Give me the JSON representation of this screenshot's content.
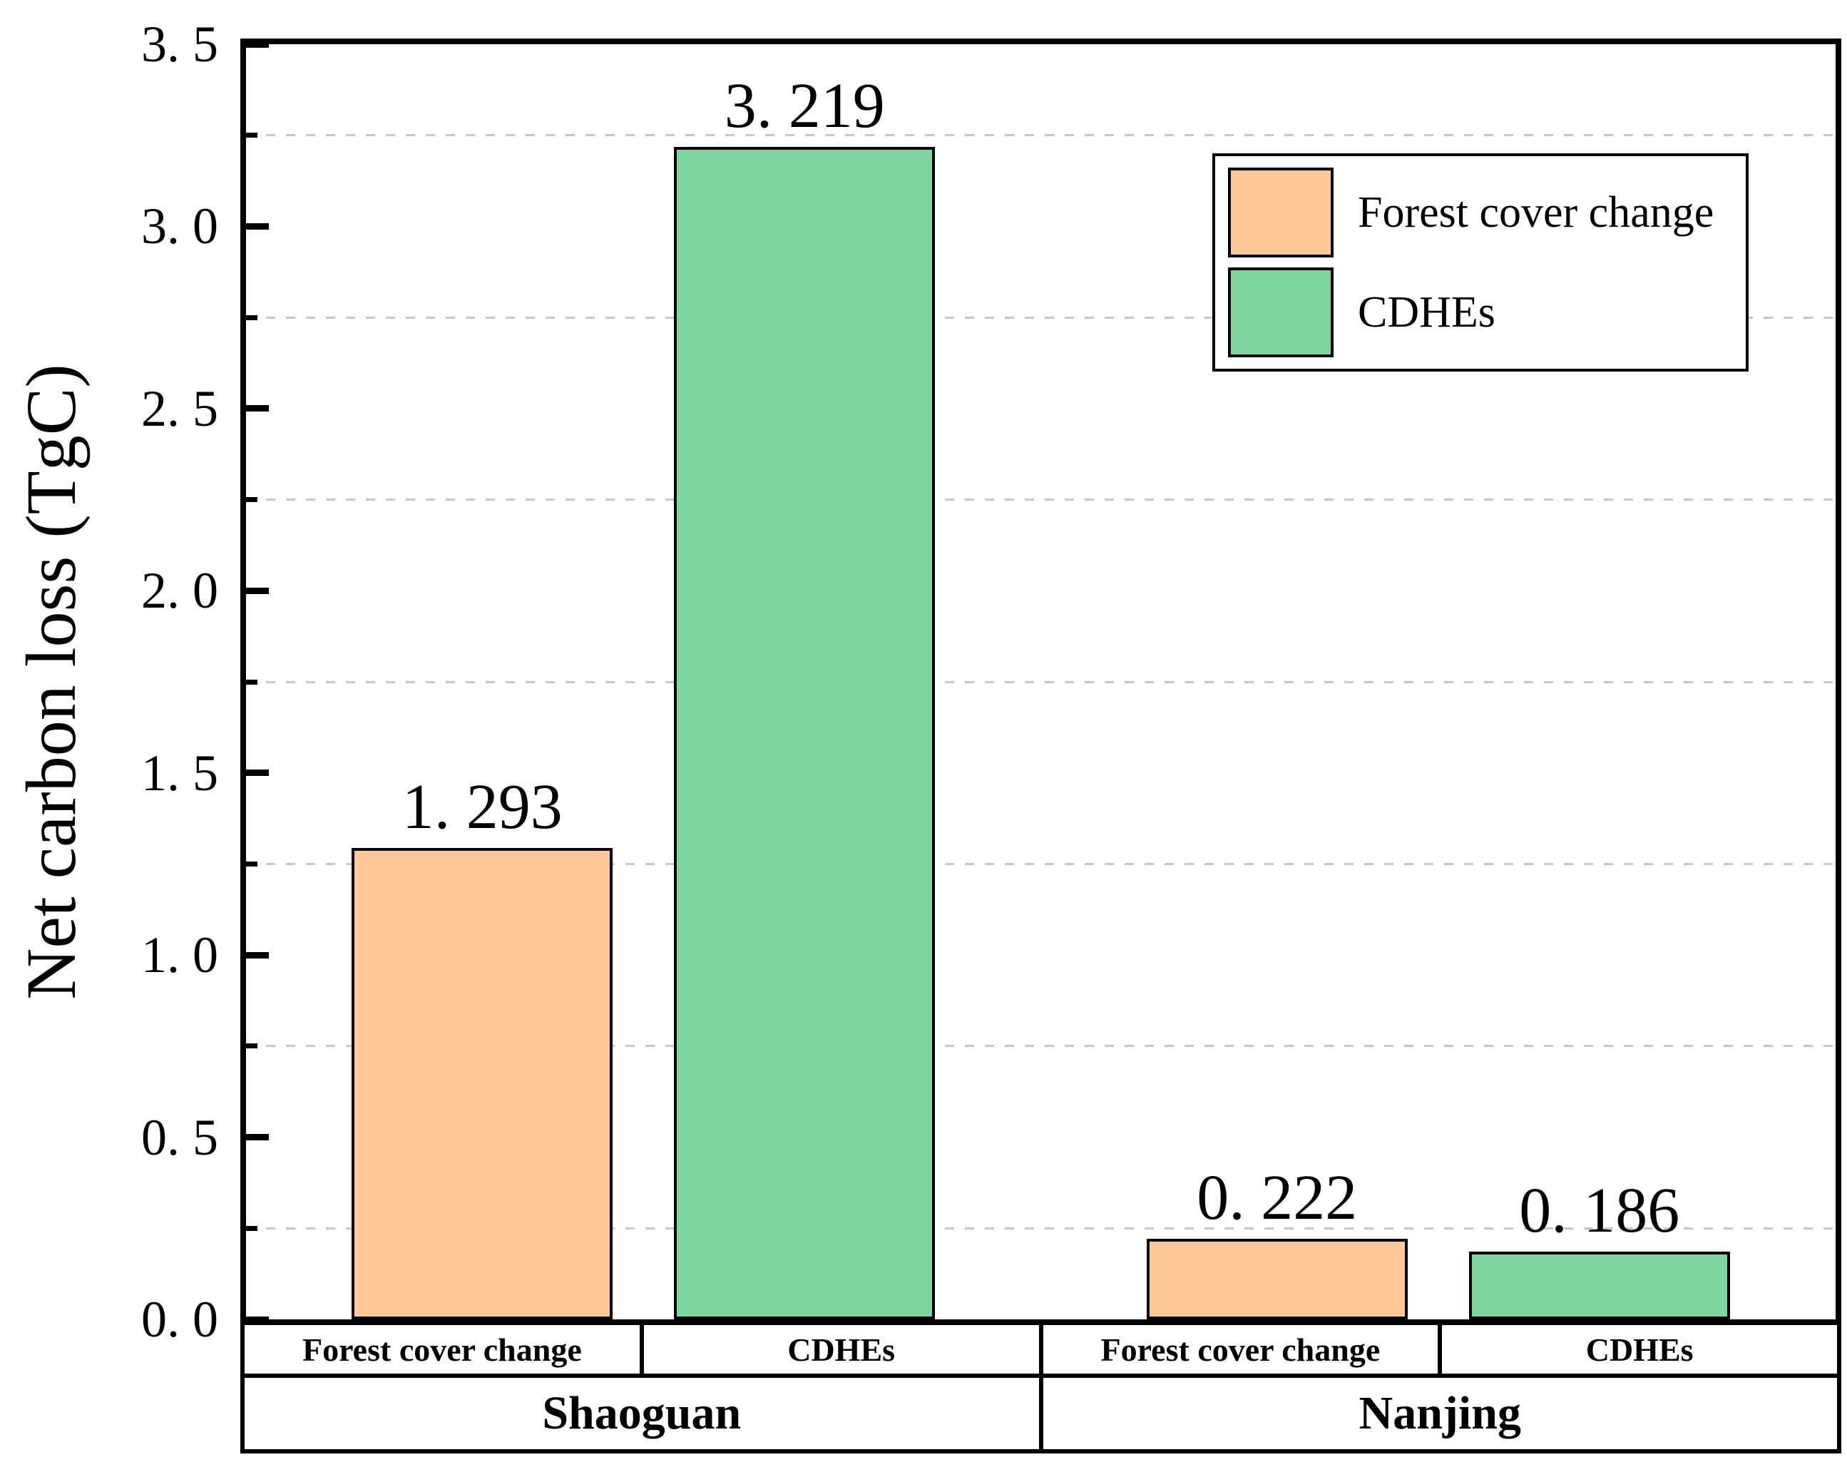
{
  "chart_data": {
    "type": "bar",
    "title": "",
    "ylabel": "Net carbon loss (TgC)",
    "xlabel": "",
    "ylim": [
      0,
      3.5
    ],
    "ymajor_step": 0.5,
    "yminor_step": 0.25,
    "grid": {
      "style": "dashed",
      "color": "#c8c8c8",
      "positions": "minor-ticks-only",
      "orientation": "horizontal"
    },
    "ytick_labels": [
      "0. 0",
      "0. 5",
      "1. 0",
      "1. 5",
      "2. 0",
      "2. 5",
      "3. 0",
      "3. 5"
    ],
    "tick_direction": "in",
    "legend": {
      "position": "upper-right",
      "entries": [
        {
          "label": "Forest cover change",
          "color": "#FEC897"
        },
        {
          "label": "CDHEs",
          "color": "#7CD69D"
        }
      ]
    },
    "groups": [
      {
        "name": "Shaoguan",
        "bars": [
          {
            "series": "Forest cover change",
            "value": 1.293,
            "label": "1. 293"
          },
          {
            "series": "CDHEs",
            "value": 3.219,
            "label": "3. 219"
          }
        ]
      },
      {
        "name": "Nanjing",
        "bars": [
          {
            "series": "Forest cover change",
            "value": 0.222,
            "label": "0. 222"
          },
          {
            "series": "CDHEs",
            "value": 0.186,
            "label": "0. 186"
          }
        ]
      }
    ],
    "colors": {
      "bar_border": "#000000",
      "axis": "#000000",
      "background": "#ffffff"
    }
  }
}
